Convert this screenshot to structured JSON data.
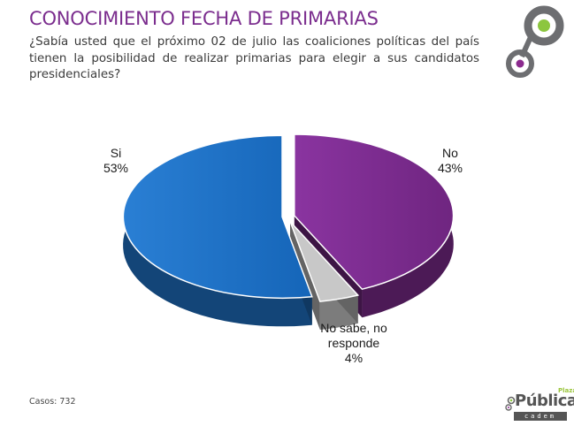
{
  "header": {
    "title": "CONOCIMIENTO FECHA DE PRIMARIAS",
    "question": "¿Sabía usted que el próximo 02 de julio las coaliciones políticas del país tienen la posibilidad de realizar primarias para elegir a sus candidatos presidenciales?"
  },
  "chart_data": {
    "type": "pie",
    "title": "",
    "slices": [
      {
        "name": "Si",
        "value": 53,
        "value_label": "53%",
        "color": "#1f6fc1"
      },
      {
        "name": "No",
        "value": 43,
        "value_label": "43%",
        "color": "#7a2a8a"
      },
      {
        "name": "No sabe, no responde",
        "value": 4,
        "value_label": "4%",
        "color": "#c8c8c8"
      }
    ],
    "label_lines": {
      "si": [
        "Si",
        "53%"
      ],
      "no": [
        "No",
        "43%"
      ],
      "ns": [
        "No sabe, no",
        "responde",
        "4%"
      ]
    }
  },
  "footer": {
    "cases": "Casos: 732",
    "brand_main": "Pública",
    "brand_top": "Plaza",
    "brand_sub": "cadem"
  },
  "colors": {
    "title": "#7b2d8e",
    "ring_green": "#8cc63f",
    "ring_purple": "#8b2a8e",
    "ring_gray": "#6d6e71"
  }
}
